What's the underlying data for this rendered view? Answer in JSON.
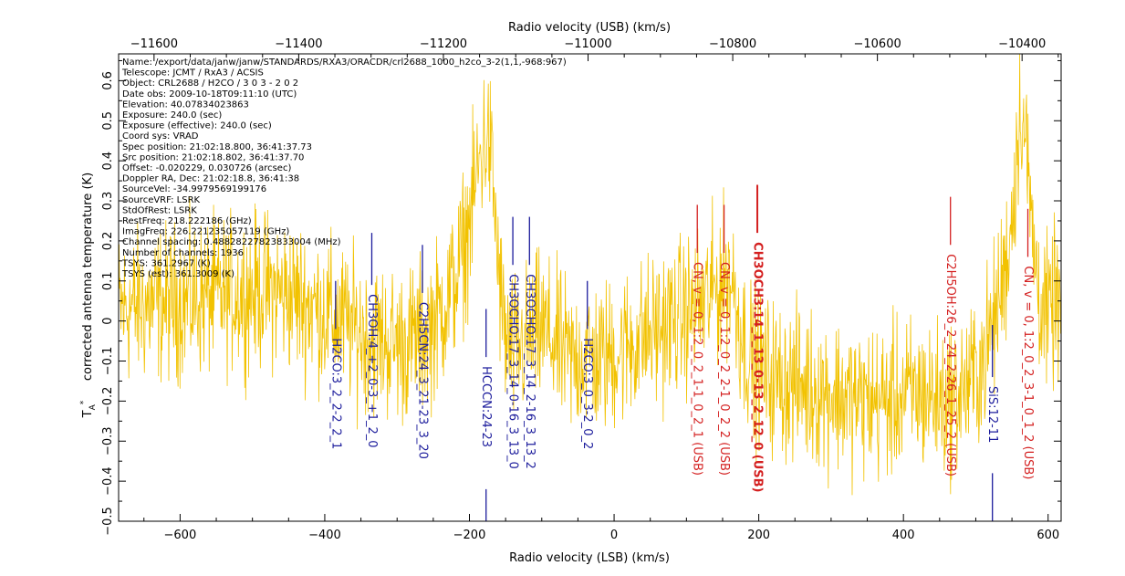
{
  "chart_data": {
    "type": "line",
    "xlabel_bottom": "Radio velocity (LSB) (km/s)",
    "xlabel_top": "Radio velocity (USB) (km/s)",
    "ylabel": "corrected antenna temperature (K)",
    "ylabel_symbol": "T",
    "ylabel_sub": "A",
    "ylabel_sup": "*",
    "xlim": [
      -685,
      618
    ],
    "ylim": [
      -0.5,
      0.667
    ],
    "bottom_ticks": [
      -600,
      -400,
      -200,
      0,
      200,
      400,
      600
    ],
    "top_ticks": [
      -10400,
      -10600,
      -10800,
      -11000,
      -11200,
      -11400,
      -11600
    ],
    "top_axis_offset": -10964,
    "y_ticks": [
      -0.5,
      -0.4,
      -0.3,
      -0.2,
      -0.1,
      0,
      0.1,
      0.2,
      0.3,
      0.4,
      0.5,
      0.6
    ],
    "series_color": "#f2c200",
    "series": [
      {
        "name": "spectrum",
        "x": [
          -685,
          -640,
          -600,
          -560,
          -520,
          -480,
          -440,
          -400,
          -360,
          -320,
          -290,
          -260,
          -240,
          -220,
          -205,
          -195,
          -188,
          -182,
          -177,
          -172,
          -168,
          -163,
          -158,
          -150,
          -140,
          -120,
          -100,
          -80,
          -60,
          -40,
          -20,
          0,
          20,
          40,
          60,
          80,
          100,
          110,
          120,
          130,
          140,
          150,
          158,
          163,
          168,
          175,
          185,
          200,
          230,
          260,
          300,
          340,
          380,
          420,
          460,
          490,
          510,
          525,
          535,
          545,
          552,
          558,
          562,
          566,
          570,
          575,
          580,
          590,
          600,
          610,
          618
        ],
        "y": [
          0.03,
          0.04,
          0.05,
          0.06,
          0.07,
          0.08,
          0.06,
          0.02,
          -0.02,
          -0.05,
          -0.06,
          -0.03,
          0.02,
          0.1,
          0.2,
          0.3,
          0.38,
          0.43,
          0.46,
          0.44,
          0.36,
          0.22,
          0.08,
          -0.05,
          -0.08,
          -0.05,
          -0.02,
          -0.06,
          -0.1,
          -0.08,
          -0.1,
          -0.08,
          -0.06,
          -0.04,
          -0.02,
          0.0,
          0.02,
          0.03,
          0.04,
          0.06,
          0.08,
          0.1,
          0.12,
          0.1,
          0.05,
          -0.02,
          -0.08,
          -0.12,
          -0.15,
          -0.16,
          -0.18,
          -0.2,
          -0.2,
          -0.18,
          -0.2,
          -0.16,
          -0.1,
          0.0,
          0.08,
          0.18,
          0.3,
          0.45,
          0.55,
          0.5,
          0.42,
          0.3,
          0.18,
          0.05,
          0.0,
          0.05,
          0.02
        ]
      }
    ],
    "info_lines": [
      "Name: /export/data/janw/janw/STANDARDS/RXA3/ORACDR/crl2688_1000_h2co_3-2(1,1,-968:967)",
      "Telescope: JCMT / RxA3 / ACSIS",
      "Object: CRL2688 / H2CO  / 3 0 3  - 2 0 2",
      "Date obs: 2009-10-18T09:11:10 (UTC)",
      "Elevation: 40.07834023863",
      "Exposure: 240.0 (sec)",
      "Exposure (effective): 240.0 (sec)",
      "Coord sys: VRAD",
      "Spec position: 21:02:18.800, 36:41:37.73",
      "Src position: 21:02:18.802, 36:41:37.70",
      "Offset: -0.020229, 0.030726 (arcsec)",
      "Doppler RA, Dec: 21:02:18.8, 36:41:38",
      "SourceVel: -34.9979569199176",
      "SourceVRF: LSRK",
      "StdOfRest: LSRK",
      "RestFreq: 218.222186 (GHz)",
      "ImagFreq: 226.221235057119 (GHz)",
      "Channel spacing: 0.48828227823833004 (MHz)",
      "Number of channels: 1936",
      "TSYS: 361.2967 (K)",
      "TSYS (est): 361.3009 (K)"
    ],
    "lines": [
      {
        "label": "H2CO:3_2_2-2_2_1",
        "x": -385,
        "y_top": 0.1,
        "y_bot": -0.02,
        "color": "#1c1c9c",
        "sideband": "LSB",
        "bold": false
      },
      {
        "label": "CH3OH:4_+2_0-3_+1_2_0",
        "x": -335,
        "y_top": 0.22,
        "y_bot": 0.09,
        "color": "#1c1c9c",
        "sideband": "LSB",
        "bold": false
      },
      {
        "label": "C2H5CN:24_3_21-23_3_20",
        "x": -265,
        "y_top": 0.19,
        "y_bot": 0.07,
        "color": "#1c1c9c",
        "sideband": "LSB",
        "bold": false
      },
      {
        "label": "HCCCN:24-23",
        "x": -177,
        "y_top": 0.03,
        "y_bot": -0.09,
        "color": "#1c1c9c",
        "sideband": "LSB",
        "bold": false,
        "lower_tick": [
          -0.42,
          -0.5
        ]
      },
      {
        "label": "CH3OCHO:17_3_14_0-16_3_13_0",
        "x": -140,
        "y_top": 0.26,
        "y_bot": 0.14,
        "color": "#1c1c9c",
        "sideband": "LSB",
        "bold": false
      },
      {
        "label": "CH3OCHO:17_3_14_2-16_3_13_2",
        "x": -117,
        "y_top": 0.26,
        "y_bot": 0.14,
        "color": "#1c1c9c",
        "sideband": "LSB",
        "bold": false
      },
      {
        "label": "H2CO:3_0_3-2_0_2",
        "x": -37,
        "y_top": 0.1,
        "y_bot": -0.02,
        "color": "#1c1c9c",
        "sideband": "LSB",
        "bold": false
      },
      {
        "label": "CN, v = 0, 1:2_0_2_1-1_0_2_1 (USB)",
        "x": 115,
        "y_top": 0.29,
        "y_bot": 0.17,
        "color": "#d42020",
        "sideband": "USB",
        "bold": false
      },
      {
        "label": "CN, v = 0, 1:2_0_2_2-1_0_2_2 (USB)",
        "x": 152,
        "y_top": 0.29,
        "y_bot": 0.17,
        "color": "#d42020",
        "sideband": "USB",
        "bold": false
      },
      {
        "label": "CH3OCH3:14_1_13_0-13_2_12_0 (USB)",
        "x": 198,
        "y_top": 0.34,
        "y_bot": 0.22,
        "color": "#d42020",
        "sideband": "USB",
        "bold": true
      },
      {
        "label": "C2H5OH:26_2_24_2-26_1_25_2 (USB)",
        "x": 465,
        "y_top": 0.31,
        "y_bot": 0.19,
        "color": "#d42020",
        "sideband": "USB",
        "bold": false
      },
      {
        "label": "SiS:12-11",
        "x": 523,
        "y_top": -0.01,
        "y_bot": -0.14,
        "color": "#1c1c9c",
        "sideband": "LSB",
        "bold": false,
        "lower_tick": [
          -0.38,
          -0.5
        ]
      },
      {
        "label": "CN, v = 0, 1:2_0_2_3-1_0_1_2 (USB)",
        "x": 572,
        "y_top": 0.28,
        "y_bot": 0.16,
        "color": "#d42020",
        "sideband": "USB",
        "bold": false
      }
    ]
  }
}
